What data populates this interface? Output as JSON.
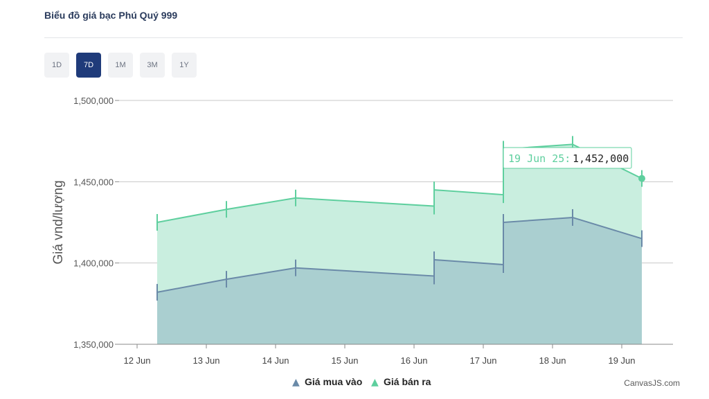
{
  "header": {
    "title": "Biểu đồ giá bạc Phú Quý 999"
  },
  "ranges": [
    {
      "label": "1D",
      "active": false
    },
    {
      "label": "7D",
      "active": true
    },
    {
      "label": "1M",
      "active": false
    },
    {
      "label": "3M",
      "active": false
    },
    {
      "label": "1Y",
      "active": false
    }
  ],
  "colors": {
    "buy": "#6a8aa8",
    "sell": "#5ecf9e",
    "buy_fill": "#aacfd0",
    "sell_fill": "#c9eedf",
    "active_tab": "#1f3b7a"
  },
  "chart_data": {
    "type": "area",
    "title": "",
    "xlabel": "",
    "ylabel": "Giá vnd/lượng",
    "ylim": [
      1350000,
      1500000
    ],
    "y_ticks": [
      "1,350,000",
      "1,400,000",
      "1,450,000",
      "1,500,000"
    ],
    "x_ticks": [
      "12 Jun",
      "13 Jun",
      "14 Jun",
      "15 Jun",
      "16 Jun",
      "17 Jun",
      "18 Jun",
      "19 Jun"
    ],
    "grid": true,
    "legend_position": "bottom",
    "series": [
      {
        "name": "Giá mua vào",
        "marker": "▲",
        "points": [
          {
            "x": "12 Jun",
            "y": 1382000
          },
          {
            "x": "13 Jun",
            "y": 1390000
          },
          {
            "x": "14 Jun",
            "y": 1397000
          },
          {
            "x": "16 Jun",
            "y": 1392000
          },
          {
            "x": "16 Jun",
            "y": 1402000
          },
          {
            "x": "17 Jun",
            "y": 1399000
          },
          {
            "x": "17 Jun",
            "y": 1425000
          },
          {
            "x": "18 Jun",
            "y": 1428000
          },
          {
            "x": "19 Jun",
            "y": 1415000
          }
        ]
      },
      {
        "name": "Giá bán ra",
        "marker": "▲",
        "points": [
          {
            "x": "12 Jun",
            "y": 1425000
          },
          {
            "x": "13 Jun",
            "y": 1433000
          },
          {
            "x": "14 Jun",
            "y": 1440000
          },
          {
            "x": "16 Jun",
            "y": 1435000
          },
          {
            "x": "16 Jun",
            "y": 1445000
          },
          {
            "x": "17 Jun",
            "y": 1442000
          },
          {
            "x": "17 Jun",
            "y": 1470000
          },
          {
            "x": "18 Jun",
            "y": 1473000
          },
          {
            "x": "19 Jun",
            "y": 1452000
          }
        ]
      }
    ],
    "tooltip": {
      "label": "19 Jun 25:",
      "value": "1,452,000"
    }
  },
  "credit": "CanvasJS.com"
}
